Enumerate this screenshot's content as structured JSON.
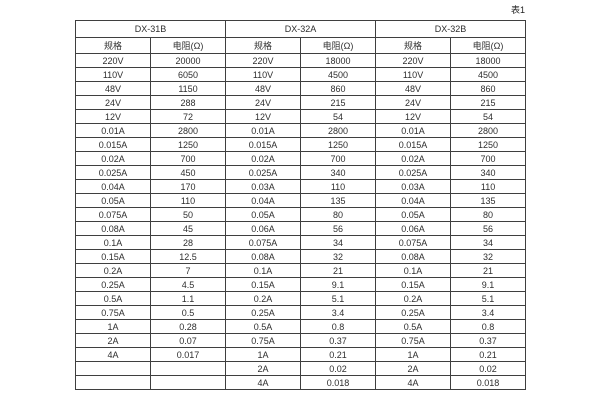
{
  "page": {
    "table_label": "表1"
  },
  "table": {
    "groups": [
      {
        "name": "DX-31B"
      },
      {
        "name": "DX-32A"
      },
      {
        "name": "DX-32B"
      }
    ],
    "col_headers": [
      "规格",
      "电阻(Ω)"
    ],
    "rows": [
      [
        "220V",
        "20000",
        "220V",
        "18000",
        "220V",
        "18000"
      ],
      [
        "110V",
        "6050",
        "110V",
        "4500",
        "110V",
        "4500"
      ],
      [
        "48V",
        "1150",
        "48V",
        "860",
        "48V",
        "860"
      ],
      [
        "24V",
        "288",
        "24V",
        "215",
        "24V",
        "215"
      ],
      [
        "12V",
        "72",
        "12V",
        "54",
        "12V",
        "54"
      ],
      [
        "0.01A",
        "2800",
        "0.01A",
        "2800",
        "0.01A",
        "2800"
      ],
      [
        "0.015A",
        "1250",
        "0.015A",
        "1250",
        "0.015A",
        "1250"
      ],
      [
        "0.02A",
        "700",
        "0.02A",
        "700",
        "0.02A",
        "700"
      ],
      [
        "0.025A",
        "450",
        "0.025A",
        "340",
        "0.025A",
        "340"
      ],
      [
        "0.04A",
        "170",
        "0.03A",
        "110",
        "0.03A",
        "110"
      ],
      [
        "0.05A",
        "110",
        "0.04A",
        "135",
        "0.04A",
        "135"
      ],
      [
        "0.075A",
        "50",
        "0.05A",
        "80",
        "0.05A",
        "80"
      ],
      [
        "0.08A",
        "45",
        "0.06A",
        "56",
        "0.06A",
        "56"
      ],
      [
        "0.1A",
        "28",
        "0.075A",
        "34",
        "0.075A",
        "34"
      ],
      [
        "0.15A",
        "12.5",
        "0.08A",
        "32",
        "0.08A",
        "32"
      ],
      [
        "0.2A",
        "7",
        "0.1A",
        "21",
        "0.1A",
        "21"
      ],
      [
        "0.25A",
        "4.5",
        "0.15A",
        "9.1",
        "0.15A",
        "9.1"
      ],
      [
        "0.5A",
        "1.1",
        "0.2A",
        "5.1",
        "0.2A",
        "5.1"
      ],
      [
        "0.75A",
        "0.5",
        "0.25A",
        "3.4",
        "0.25A",
        "3.4"
      ],
      [
        "1A",
        "0.28",
        "0.5A",
        "0.8",
        "0.5A",
        "0.8"
      ],
      [
        "2A",
        "0.07",
        "0.75A",
        "0.37",
        "0.75A",
        "0.37"
      ],
      [
        "4A",
        "0.017",
        "1A",
        "0.21",
        "1A",
        "0.21"
      ],
      [
        "",
        "",
        "2A",
        "0.02",
        "2A",
        "0.02"
      ],
      [
        "",
        "",
        "4A",
        "0.018",
        "4A",
        "0.018"
      ]
    ]
  }
}
